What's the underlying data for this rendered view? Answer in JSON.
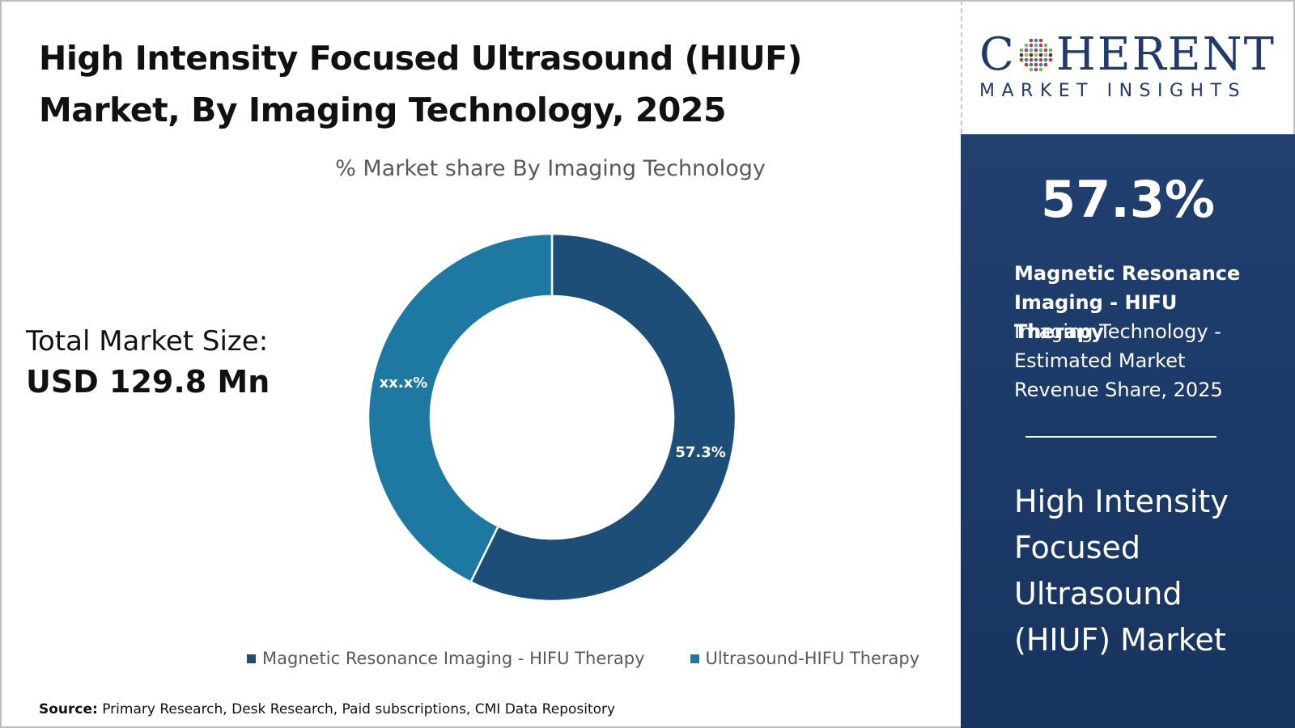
{
  "title_line1": "High Intensity Focused Ultrasound (HIUF)",
  "title_line2": "Market, By Imaging Technology, 2025",
  "total_label": "Total Market Size:",
  "total_value": "USD 129.8 Mn",
  "source_label": "Source:",
  "source_text": "Primary Research, Desk Research, Paid subscriptions, CMI Data Repository",
  "logo": {
    "main_left": "C",
    "main_right": "HERENT",
    "sub": "MARKET INSIGHTS"
  },
  "panel": {
    "value": "57.3%",
    "segment_name": "Magnetic Resonance Imaging - HIFU Therapy",
    "description": "Imaging Technology - Estimated Market Revenue Share, 2025",
    "market_name": "High Intensity Focused Ultrasound (HIUF) Market"
  },
  "colors": {
    "mri": "#1d4e78",
    "ultrasound": "#1e79a2",
    "panel": "#1f3d6c",
    "brand": "#1f3a6b"
  },
  "chart_data": {
    "type": "pie",
    "donut": true,
    "title": "% Market share By Imaging Technology",
    "categories": [
      "Magnetic Resonance Imaging - HIFU Therapy",
      "Ultrasound-HIFU Therapy"
    ],
    "values": [
      57.3,
      42.7
    ],
    "data_labels": [
      "57.3%",
      "xx.x%"
    ],
    "legend_position": "bottom"
  }
}
